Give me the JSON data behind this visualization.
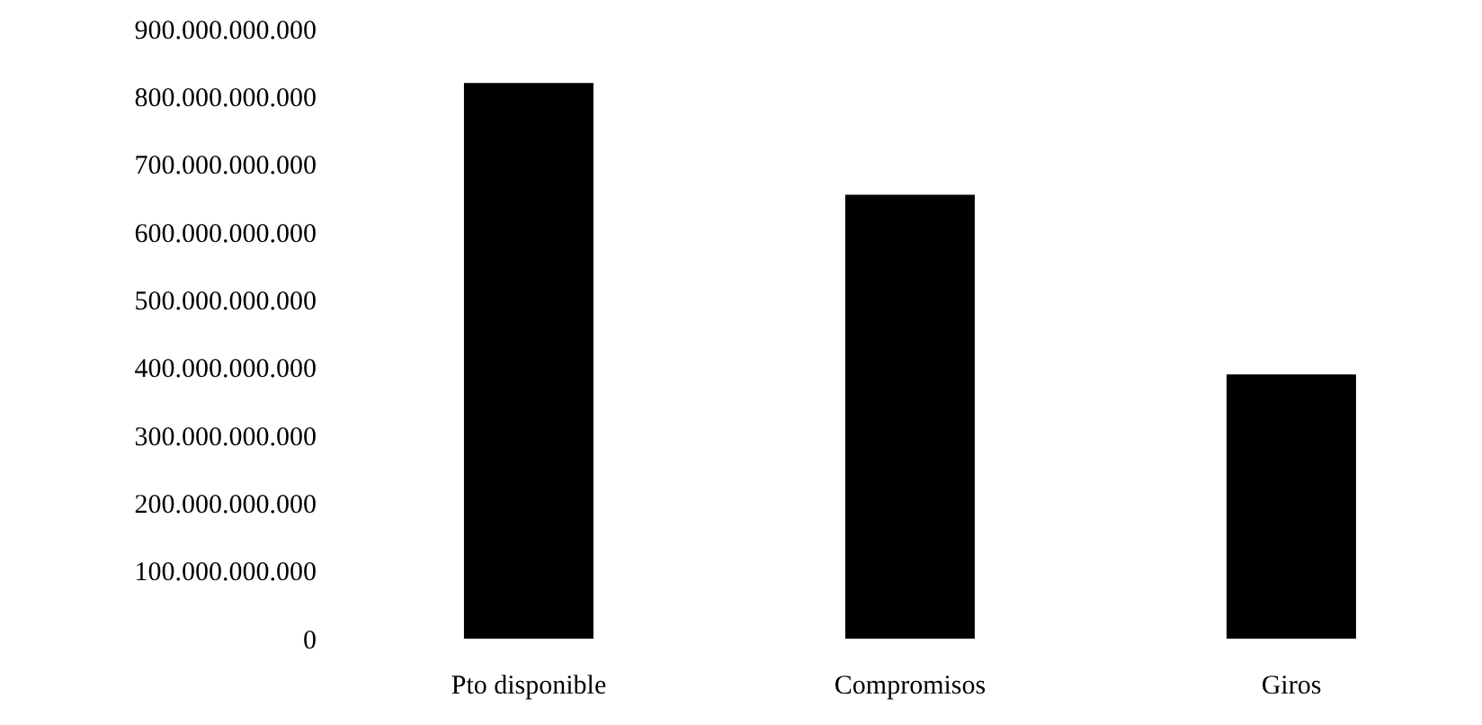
{
  "chart_data": {
    "type": "bar",
    "categories": [
      "Pto disponible",
      "Compromisos",
      "Giros"
    ],
    "values": [
      820000000000,
      655000000000,
      390000000000
    ],
    "color": "#000000",
    "ylim": [
      0,
      900000000000
    ],
    "yticks": [
      0,
      {
        "value": 100000000000,
        "label": "100.000.000.000"
      },
      {
        "value": 200000000000,
        "label": "200.000.000.000"
      },
      {
        "value": 300000000000,
        "label": "300.000.000.000"
      },
      {
        "value": 400000000000,
        "label": "400.000.000.000"
      },
      {
        "value": 500000000000,
        "label": "500.000.000.000"
      },
      {
        "value": 600000000000,
        "label": "600.000.000.000"
      },
      {
        "value": 700000000000,
        "label": "700.000.000.000"
      },
      {
        "value": 800000000000,
        "label": "800.000.000.000"
      },
      {
        "value": 900000000000,
        "label": "900.000.000.000"
      }
    ],
    "grid": false,
    "legend": false
  }
}
